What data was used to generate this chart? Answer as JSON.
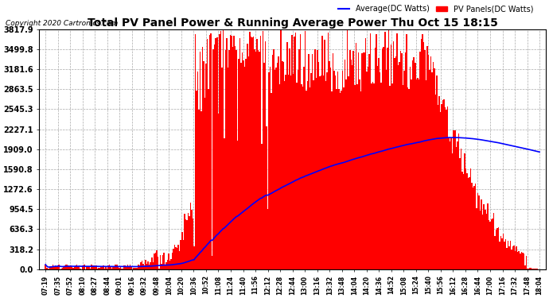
{
  "title": "Total PV Panel Power & Running Average Power Thu Oct 15 18:15",
  "copyright": "Copyright 2020 Cartronics.com",
  "legend_average": "Average(DC Watts)",
  "legend_pv": "PV Panels(DC Watts)",
  "ylabel_values": [
    0.0,
    318.2,
    636.3,
    954.5,
    1272.6,
    1590.8,
    1909.0,
    2227.1,
    2545.3,
    2863.5,
    3181.6,
    3499.8,
    3817.9
  ],
  "ymax": 3817.9,
  "ymin": 0.0,
  "background_color": "#ffffff",
  "plot_bg_color": "#ffffff",
  "grid_color": "#aaaaaa",
  "bar_color": "#ff0000",
  "avg_line_color": "#0000ff",
  "title_color": "#000000",
  "copyright_color": "#000000",
  "x_tick_labels": [
    "07:19",
    "07:35",
    "07:52",
    "08:10",
    "08:27",
    "08:44",
    "09:01",
    "09:16",
    "09:32",
    "09:48",
    "10:04",
    "10:20",
    "10:36",
    "10:52",
    "11:08",
    "11:24",
    "11:40",
    "11:56",
    "12:12",
    "12:28",
    "12:44",
    "13:00",
    "13:16",
    "13:32",
    "13:48",
    "14:04",
    "14:20",
    "14:36",
    "14:52",
    "15:08",
    "15:24",
    "15:40",
    "15:56",
    "16:12",
    "16:28",
    "16:44",
    "17:00",
    "17:16",
    "17:32",
    "17:48",
    "18:04"
  ],
  "n_ticks": 41,
  "n_points": 410
}
